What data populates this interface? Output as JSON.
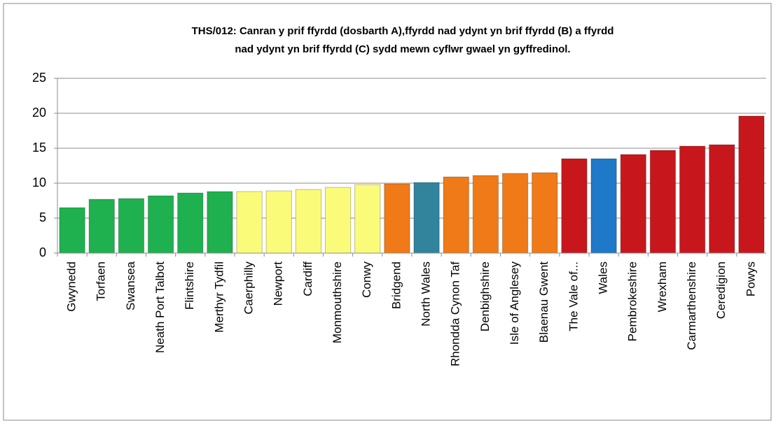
{
  "chart_data": {
    "type": "bar",
    "title": [
      "THS/012:  Canran y prif ffyrdd (dosbarth A),ffyrdd nad ydynt yn brif ffyrdd (B) a ffyrdd",
      "nad ydynt yn brif ffyrdd (C) sydd mewn cyflwr gwael yn gyffredinol."
    ],
    "categories": [
      "Gwynedd",
      "Torfaen",
      "Swansea",
      "Neath Port Talbot",
      "Flintshire",
      "Merthyr Tydfil",
      "Caerphilly",
      "Newport",
      "Cardiff",
      "Monmouthshire",
      "Conwy",
      "Bridgend",
      "North Wales",
      "Rhondda Cynon Taf",
      "Denbighshire",
      "Isle of Anglesey",
      "Blaenau Gwent",
      "The Vale of...",
      "Wales",
      "Pembrokeshire",
      "Wrexham",
      "Carmarthenshire",
      "Ceredigion",
      "Powys"
    ],
    "values": [
      6.5,
      7.7,
      7.8,
      8.2,
      8.6,
      8.8,
      8.8,
      8.9,
      9.1,
      9.4,
      9.8,
      9.9,
      10.1,
      10.9,
      11.1,
      11.4,
      11.5,
      13.5,
      13.5,
      14.1,
      14.7,
      15.3,
      15.5,
      19.6
    ],
    "colors": [
      "#1fb04f",
      "#1fb04f",
      "#1fb04f",
      "#1fb04f",
      "#1fb04f",
      "#1fb04f",
      "#fbfb7a",
      "#fbfb7a",
      "#fbfb7a",
      "#fbfb7a",
      "#fbfb7a",
      "#f07a17",
      "#31849b",
      "#f07a17",
      "#f07a17",
      "#f07a17",
      "#f07a17",
      "#c8171c",
      "#1f78c8",
      "#c8171c",
      "#c8171c",
      "#c8171c",
      "#c8171c",
      "#c8171c"
    ],
    "ylim": [
      0,
      25
    ],
    "yticks": [
      0,
      5,
      10,
      15,
      20,
      25
    ],
    "grid": true
  }
}
